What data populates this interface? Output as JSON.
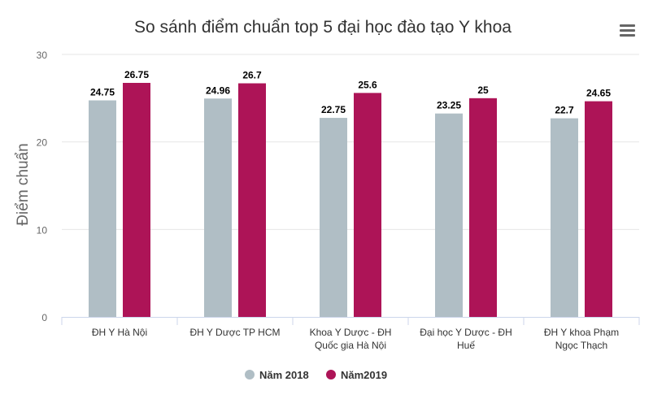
{
  "menu": {
    "icon": "hamburger-menu-icon"
  },
  "chart_data": {
    "type": "bar",
    "title": "So sánh điểm chuẩn top 5 đại học đào tạo Y khoa",
    "ylabel": "Điểm chuẩn",
    "xlabel": "",
    "ylim": [
      0,
      30
    ],
    "yticks": [
      0,
      10,
      20,
      30
    ],
    "grid": true,
    "legend_position": "bottom-center",
    "categories": [
      [
        "ĐH Y Hà Nội"
      ],
      [
        "ĐH Y Dược TP HCM"
      ],
      [
        "Khoa Y Dược - ĐH",
        "Quốc gia Hà Nội"
      ],
      [
        "Đại học Y Dược - ĐH",
        "Huế"
      ],
      [
        "ĐH Y khoa Phạm",
        "Ngọc Thạch"
      ]
    ],
    "series": [
      {
        "name": "Năm 2018",
        "color": "#b0bec5",
        "values": [
          24.75,
          24.96,
          22.75,
          23.25,
          22.7
        ],
        "labels": [
          "24.75",
          "24.96",
          "22.75",
          "23.25",
          "22.7"
        ]
      },
      {
        "name": "Năm2019",
        "color": "#ad1457",
        "values": [
          26.75,
          26.7,
          25.6,
          25,
          24.65
        ],
        "labels": [
          "26.75",
          "26.7",
          "25.6",
          "25",
          "24.65"
        ]
      }
    ]
  }
}
